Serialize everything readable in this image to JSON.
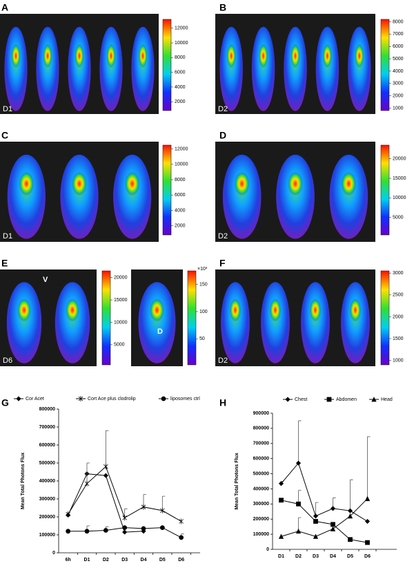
{
  "panels": [
    {
      "label": "A",
      "day": "D1",
      "colorbars": [
        {
          "lim": [
            800,
            13200
          ],
          "ticks": [
            2000,
            4000,
            6000,
            8000,
            10000,
            12000
          ]
        }
      ]
    },
    {
      "label": "B",
      "day": "D2",
      "colorbars": [
        {
          "lim": [
            800,
            8200
          ],
          "ticks": [
            1000,
            2000,
            3000,
            4000,
            5000,
            6000,
            7000,
            8000
          ]
        }
      ]
    },
    {
      "label": "C",
      "day": "D1",
      "colorbars": [
        {
          "lim": [
            800,
            12500
          ],
          "ticks": [
            2000,
            4000,
            6000,
            8000,
            10000,
            12000
          ]
        }
      ]
    },
    {
      "label": "D",
      "day": "D2",
      "colorbars": [
        {
          "lim": [
            500,
            23500
          ],
          "ticks": [
            5000,
            10000,
            15000,
            20000
          ]
        }
      ]
    },
    {
      "label": "E",
      "day": "D6",
      "annotations": [
        "V",
        "D"
      ],
      "colorbars": [
        {
          "lim": [
            500,
            21500
          ],
          "ticks": [
            5000,
            10000,
            15000,
            20000
          ]
        },
        {
          "lim": [
            2,
            175
          ],
          "ticks": [
            50,
            100,
            150
          ],
          "unit": "×10³"
        }
      ]
    },
    {
      "label": "F",
      "day": "D2",
      "colorbars": [
        {
          "lim": [
            900,
            3050
          ],
          "ticks": [
            1000,
            1500,
            2000,
            2500,
            3000
          ]
        }
      ]
    }
  ],
  "chart_data": [
    {
      "type": "line",
      "label": "G",
      "y_label": "Mean Total Photons Flux",
      "categories": [
        "6h",
        "D1",
        "D2",
        "D3",
        "D4",
        "D5",
        "D6"
      ],
      "ylim": [
        0,
        800000
      ],
      "yticks": [
        0,
        100000,
        200000,
        300000,
        400000,
        500000,
        600000,
        700000,
        800000
      ],
      "series": [
        {
          "name": "Cor Acet",
          "color": "#000000",
          "marker": "diamond",
          "values": [
            210000,
            440000,
            430000,
            115000,
            120000,
            null,
            null
          ],
          "errors": [
            null,
            null,
            null,
            null,
            null,
            null,
            null
          ]
        },
        {
          "name": "Cort Ace plus clodrolip",
          "color": "#000000",
          "marker": "star",
          "values": [
            215000,
            385000,
            480000,
            195000,
            255000,
            235000,
            175000
          ],
          "errors": [
            null,
            115000,
            200000,
            50000,
            70000,
            80000,
            null
          ]
        },
        {
          "name": "liposomes ctrl",
          "color": "#000000",
          "marker": "circle",
          "values": [
            120000,
            120000,
            125000,
            140000,
            135000,
            140000,
            85000
          ],
          "errors": [
            null,
            30000,
            20000,
            null,
            null,
            null,
            20000
          ]
        }
      ]
    },
    {
      "type": "line",
      "label": "H",
      "y_label": "Mean Total Photons Flux",
      "categories": [
        "D1",
        "D2",
        "D3",
        "D4",
        "D5",
        "D6"
      ],
      "ylim": [
        0,
        900000
      ],
      "yticks": [
        0,
        100000,
        200000,
        300000,
        400000,
        500000,
        600000,
        700000,
        800000,
        900000
      ],
      "series": [
        {
          "name": "Chest",
          "color": "#000000",
          "marker": "diamond",
          "values": [
            435000,
            570000,
            220000,
            270000,
            255000,
            185000
          ],
          "errors": [
            15000,
            280000,
            90000,
            70000,
            205000,
            null
          ]
        },
        {
          "name": "Abdomen",
          "color": "#000000",
          "marker": "square",
          "values": [
            325000,
            300000,
            185000,
            165000,
            65000,
            45000
          ],
          "errors": [
            10000,
            90000,
            null,
            null,
            null,
            null
          ]
        },
        {
          "name": "Head",
          "color": "#000000",
          "marker": "triangle",
          "values": [
            85000,
            120000,
            85000,
            135000,
            220000,
            335000
          ],
          "errors": [
            null,
            90000,
            null,
            null,
            null,
            410000
          ]
        }
      ]
    }
  ]
}
